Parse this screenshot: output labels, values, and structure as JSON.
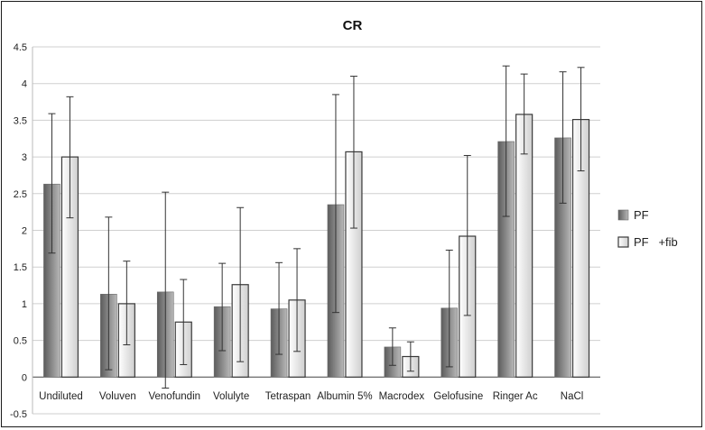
{
  "chart_data": {
    "type": "bar",
    "title": "CR",
    "xlabel": "",
    "ylabel": "",
    "ylim": [
      -0.5,
      4.5
    ],
    "yticks": [
      "-0.5",
      "0",
      "0.5",
      "1",
      "1.5",
      "2",
      "2.5",
      "3",
      "3.5",
      "4",
      "4.5"
    ],
    "grid": true,
    "legend_position": "right",
    "categories": [
      "Undiluted",
      "Voluven",
      "Venofundin",
      "Volulyte",
      "Tetraspan",
      "Albumin 5%",
      "Macrodex",
      "Gelofusine",
      "Ringer Ac",
      "NaCl"
    ],
    "series": [
      {
        "name": "PF",
        "color": "#8a8a8a",
        "values": [
          2.63,
          1.13,
          1.16,
          0.96,
          0.93,
          2.35,
          0.41,
          0.94,
          3.21,
          3.26
        ],
        "error_low": [
          1.69,
          0.1,
          -0.15,
          0.36,
          0.31,
          0.88,
          0.16,
          0.14,
          2.19,
          2.37
        ],
        "error_high": [
          3.59,
          2.18,
          2.52,
          1.55,
          1.56,
          3.85,
          0.67,
          1.73,
          4.24,
          4.16
        ]
      },
      {
        "name": "PF   +fib",
        "color": "#e0e0e0",
        "values": [
          3.0,
          1.0,
          0.75,
          1.26,
          1.05,
          3.07,
          0.28,
          1.92,
          3.58,
          3.51
        ],
        "error_low": [
          2.17,
          0.44,
          0.17,
          0.21,
          0.35,
          2.03,
          0.08,
          0.84,
          3.04,
          2.81
        ],
        "error_high": [
          3.82,
          1.58,
          1.33,
          2.31,
          1.75,
          4.1,
          0.48,
          3.02,
          4.13,
          4.22
        ]
      }
    ]
  }
}
